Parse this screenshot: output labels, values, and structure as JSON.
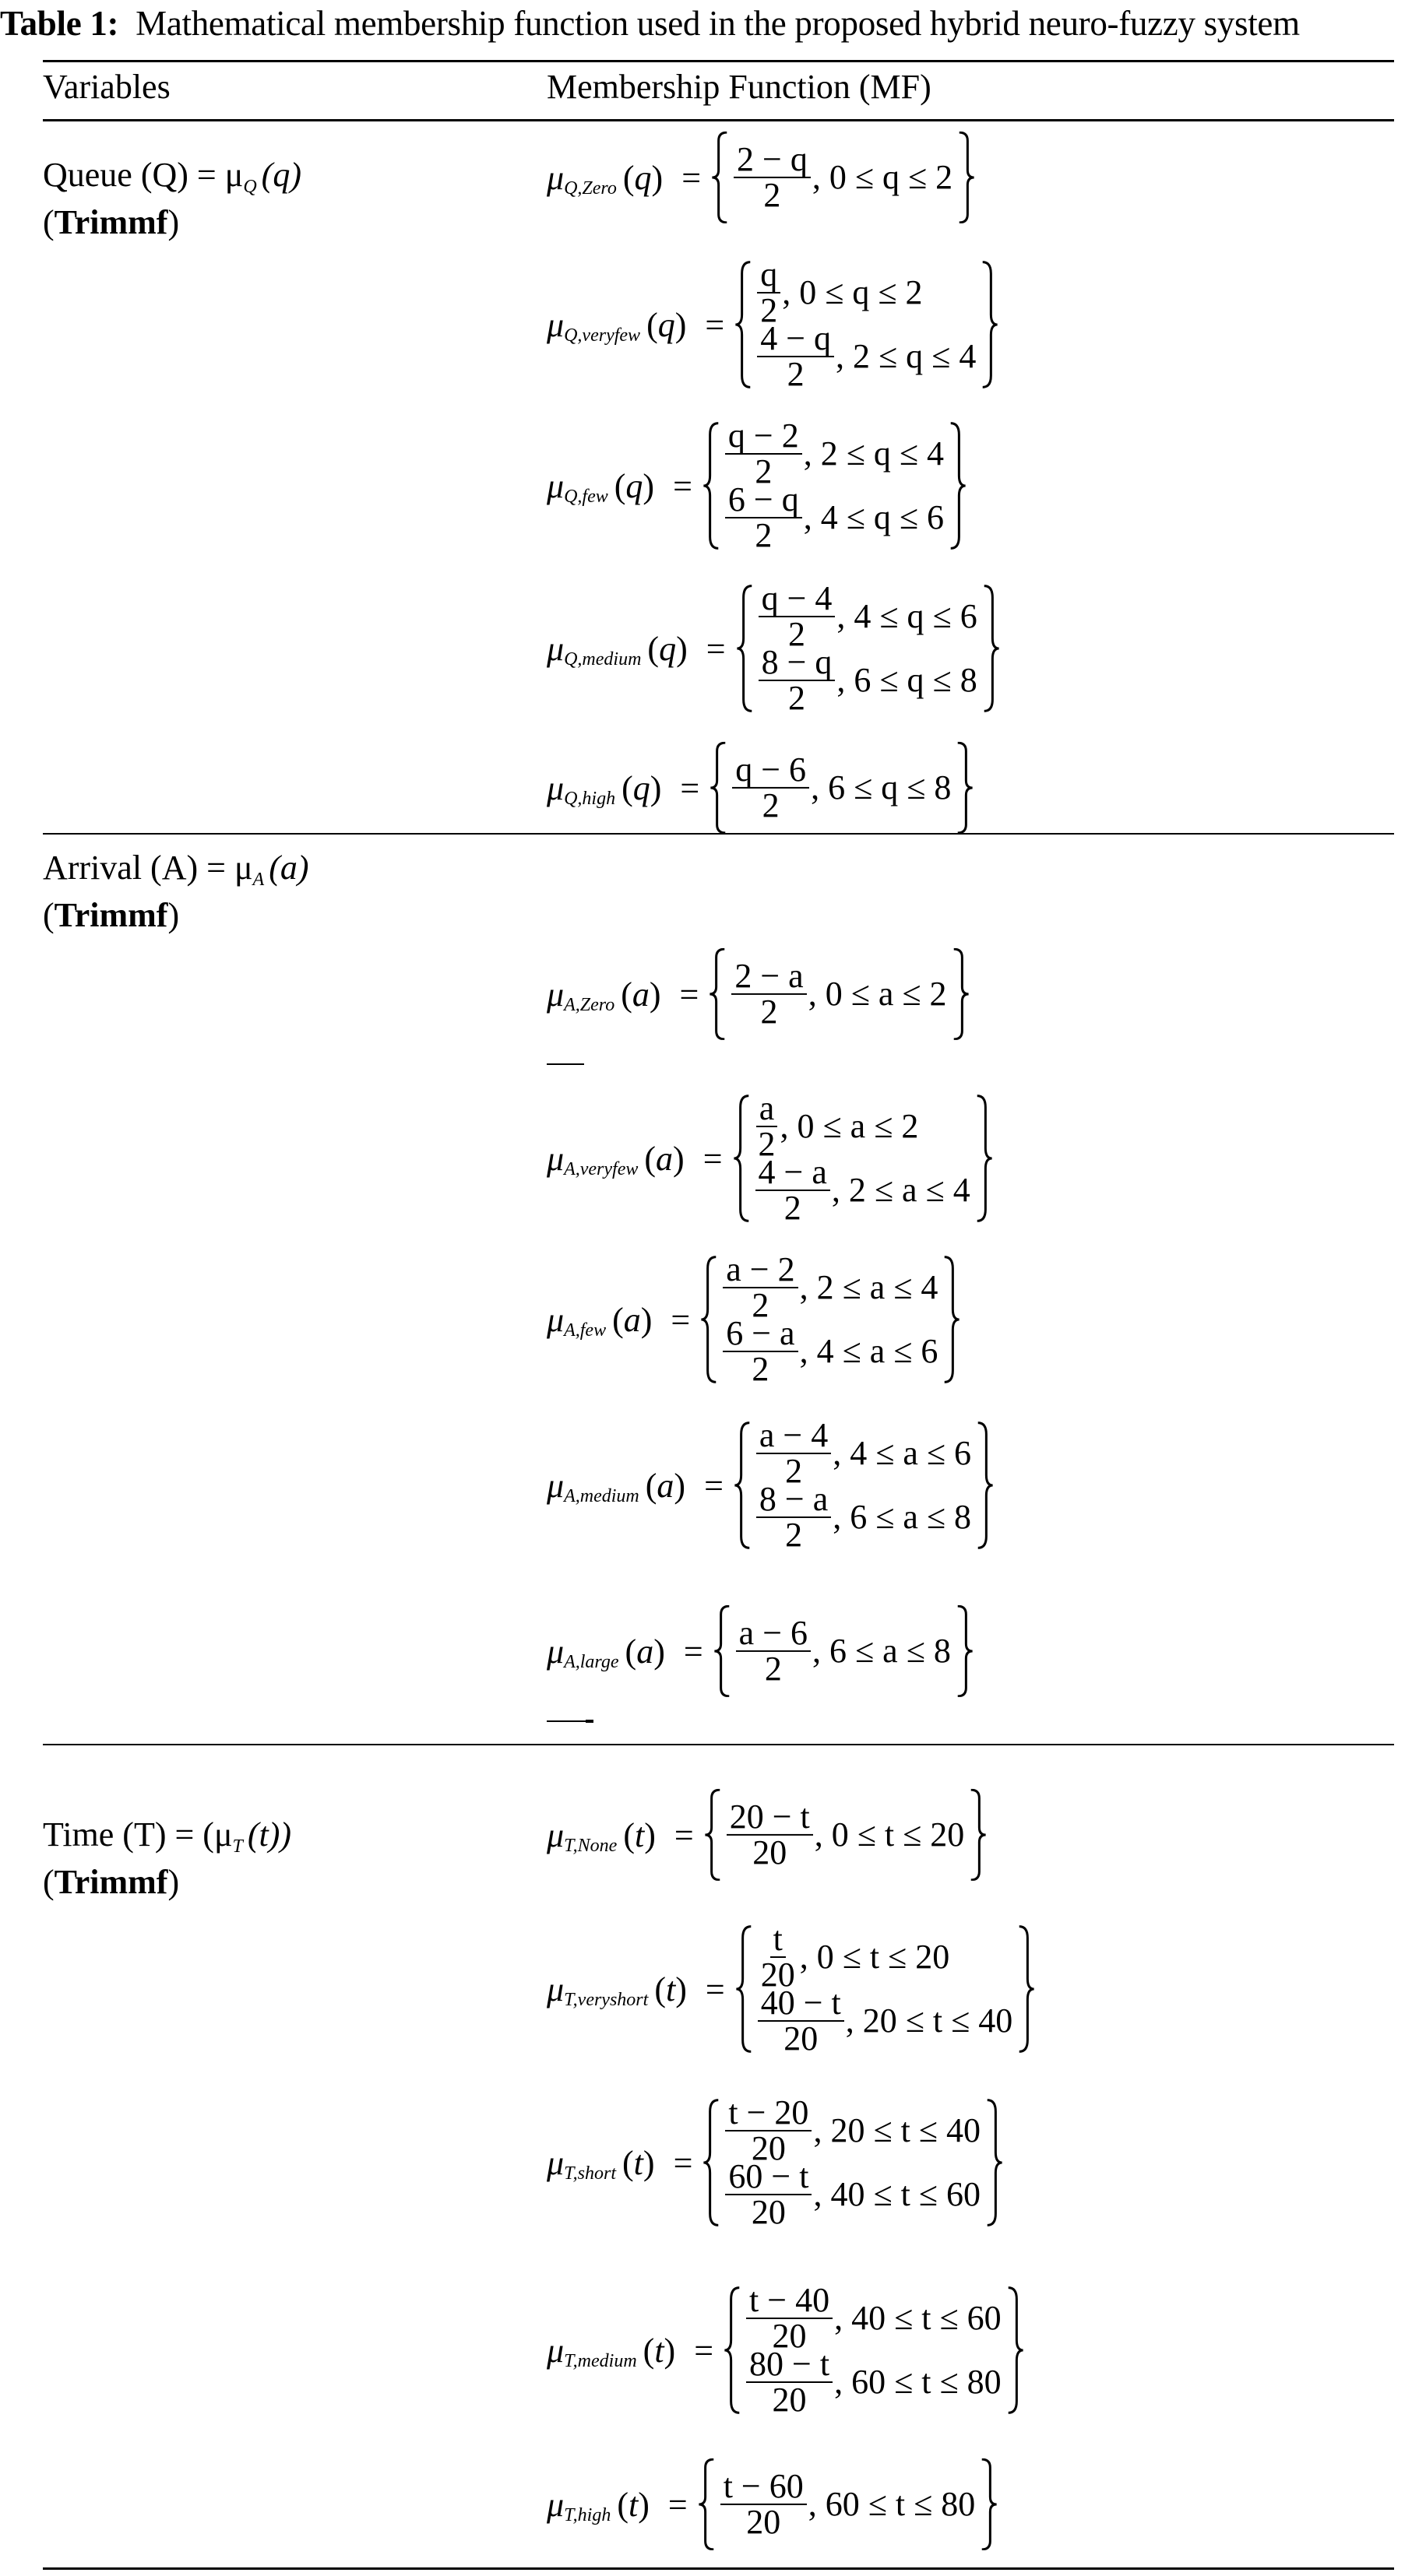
{
  "caption": {
    "label": "Table 1:",
    "text": "Mathematical membership function used in the proposed hybrid neuro-fuzzy system"
  },
  "headers": {
    "variables": "Variables",
    "mf": "Membership Function (MF)"
  },
  "sections": [
    {
      "label": "Queue (Q) = μ",
      "label_sub": "Q",
      "label_arg": "(q)",
      "type": "(Trimmf)",
      "formulas": [
        {
          "sub": "Q,Zero",
          "arg": "q",
          "pieces": [
            {
              "num": "2 − q",
              "den": "2",
              "cond": ", 0 ≤ q ≤ 2"
            }
          ]
        },
        {
          "sub": "Q,veryfew",
          "arg": "q",
          "pieces": [
            {
              "num": "q",
              "den": "2",
              "cond": ", 0 ≤ q ≤ 2"
            },
            {
              "num": "4 − q",
              "den": "2",
              "cond": ", 2 ≤ q ≤ 4"
            }
          ]
        },
        {
          "sub": "Q,few",
          "arg": "q",
          "pieces": [
            {
              "num": "q − 2",
              "den": "2",
              "cond": ", 2 ≤ q ≤ 4"
            },
            {
              "num": "6 − q",
              "den": "2",
              "cond": ", 4 ≤ q ≤ 6"
            }
          ]
        },
        {
          "sub": "Q,medium",
          "arg": "q",
          "pieces": [
            {
              "num": "q − 4",
              "den": "2",
              "cond": ", 4 ≤ q ≤ 6"
            },
            {
              "num": "8 − q",
              "den": "2",
              "cond": ", 6 ≤ q ≤ 8"
            }
          ]
        },
        {
          "sub": "Q,high",
          "arg": "q",
          "pieces": [
            {
              "num": "q − 6",
              "den": "2",
              "cond": ", 6 ≤ q ≤ 8"
            }
          ]
        }
      ]
    },
    {
      "label": "Arrival (A) = μ",
      "label_sub": "A",
      "label_arg": "(a)",
      "type": "(Trimmf)",
      "formulas": [
        {
          "sub": "A,Zero",
          "arg": "a",
          "pieces": [
            {
              "num": "2 − a",
              "den": "2",
              "cond": ", 0 ≤ a ≤ 2"
            }
          ]
        },
        {
          "sub": "A,veryfew",
          "arg": "a",
          "pieces": [
            {
              "num": "a",
              "den": "2",
              "cond": ", 0 ≤ a ≤ 2"
            },
            {
              "num": "4 − a",
              "den": "2",
              "cond": ", 2 ≤ a ≤ 4"
            }
          ]
        },
        {
          "sub": "A,few",
          "arg": "a",
          "pieces": [
            {
              "num": "a − 2",
              "den": "2",
              "cond": ", 2 ≤ a ≤ 4"
            },
            {
              "num": "6 − a",
              "den": "2",
              "cond": ", 4 ≤ a ≤ 6"
            }
          ]
        },
        {
          "sub": "A,medium",
          "arg": "a",
          "pieces": [
            {
              "num": "a − 4",
              "den": "2",
              "cond": ", 4 ≤ a ≤ 6"
            },
            {
              "num": "8 − a",
              "den": "2",
              "cond": ", 6 ≤ a ≤ 8"
            }
          ]
        },
        {
          "sub": "A,large",
          "arg": "a",
          "pieces": [
            {
              "num": "a − 6",
              "den": "2",
              "cond": ", 6 ≤ a ≤ 8"
            }
          ]
        }
      ]
    },
    {
      "label": "Time (T) = (μ",
      "label_sub": "T",
      "label_arg": "(t))",
      "type": "(Trimmf)",
      "formulas": [
        {
          "sub": "T,None",
          "arg": "t",
          "pieces": [
            {
              "num": "20 − t",
              "den": "20",
              "cond": ", 0 ≤ t ≤ 20"
            }
          ]
        },
        {
          "sub": "T,veryshort",
          "arg": "t",
          "pieces": [
            {
              "num": "t",
              "den": "20",
              "cond": ", 0 ≤ t ≤ 20"
            },
            {
              "num": "40 − t",
              "den": "20",
              "cond": ", 20 ≤ t ≤ 40"
            }
          ]
        },
        {
          "sub": "T,short",
          "arg": "t",
          "pieces": [
            {
              "num": "t − 20",
              "den": "20",
              "cond": ", 20 ≤ t ≤ 40"
            },
            {
              "num": "60 − t",
              "den": "20",
              "cond": ", 40 ≤ t ≤ 60"
            }
          ]
        },
        {
          "sub": "T,medium",
          "arg": "t",
          "pieces": [
            {
              "num": "t − 40",
              "den": "20",
              "cond": ", 40 ≤ t ≤ 60"
            },
            {
              "num": "80 − t",
              "den": "20",
              "cond": ", 60 ≤ t ≤ 80"
            }
          ]
        },
        {
          "sub": "T,high",
          "arg": "t",
          "pieces": [
            {
              "num": "t − 60",
              "den": "20",
              "cond": ", 60 ≤ t ≤ 80"
            }
          ]
        }
      ]
    }
  ]
}
